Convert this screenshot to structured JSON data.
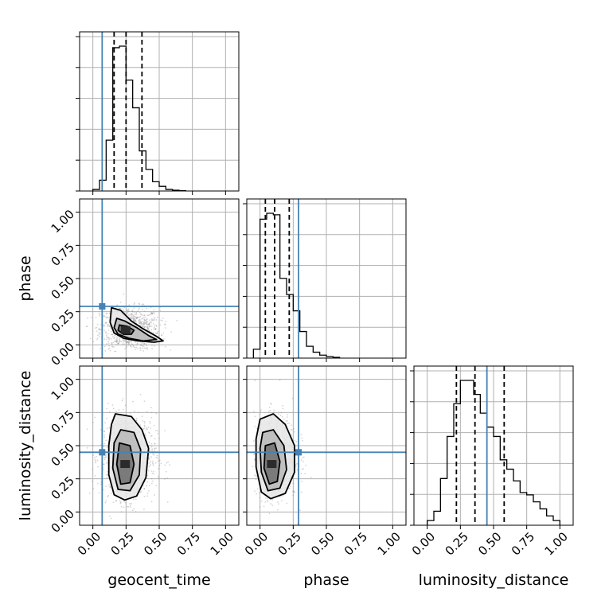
{
  "chart_data": {
    "type": "corner",
    "parameters": [
      "geocent_time",
      "phase",
      "luminosity_distance"
    ],
    "axis_range": [
      -0.1,
      1.1
    ],
    "ticks": [
      0.0,
      0.25,
      0.5,
      0.75,
      1.0
    ],
    "tick_labels": [
      "0.00",
      "0.25",
      "0.50",
      "0.75",
      "1.00"
    ],
    "grid": true,
    "colors": {
      "truth": "#4682b4",
      "histogram": "#000000",
      "grid": "#b0b0b0",
      "samples": "#888888"
    },
    "truths": {
      "geocent_time": 0.07,
      "phase": 0.29,
      "luminosity_distance": 0.45
    },
    "quantile_lines": {
      "geocent_time": [
        0.16,
        0.25,
        0.37
      ],
      "phase": [
        0.04,
        0.11,
        0.22
      ],
      "luminosity_distance": [
        0.22,
        0.36,
        0.58
      ]
    },
    "histograms": [
      {
        "parameter": "geocent_time",
        "bin_edges": [
          0.0,
          0.05,
          0.1,
          0.15,
          0.2,
          0.25,
          0.3,
          0.35,
          0.4,
          0.45,
          0.5,
          0.55,
          0.6,
          0.65,
          0.7
        ],
        "counts": [
          0.01,
          0.07,
          0.33,
          0.93,
          0.94,
          0.72,
          0.54,
          0.26,
          0.14,
          0.06,
          0.03,
          0.01,
          0.005,
          0.002
        ]
      },
      {
        "parameter": "phase",
        "bin_edges": [
          -0.05,
          0.0,
          0.05,
          0.1,
          0.15,
          0.2,
          0.25,
          0.3,
          0.35,
          0.4,
          0.45,
          0.5,
          0.55,
          0.6
        ],
        "counts": [
          0.06,
          0.94,
          0.98,
          0.97,
          0.54,
          0.43,
          0.32,
          0.18,
          0.08,
          0.04,
          0.02,
          0.01,
          0.005
        ]
      },
      {
        "parameter": "luminosity_distance",
        "bin_edges": [
          0.0,
          0.05,
          0.1,
          0.15,
          0.2,
          0.25,
          0.3,
          0.35,
          0.4,
          0.45,
          0.5,
          0.55,
          0.6,
          0.65,
          0.7,
          0.75,
          0.8,
          0.85,
          0.9,
          0.95,
          1.0
        ],
        "counts": [
          0.02,
          0.06,
          0.2,
          0.38,
          0.52,
          0.62,
          0.62,
          0.56,
          0.48,
          0.42,
          0.38,
          0.28,
          0.24,
          0.19,
          0.14,
          0.13,
          0.1,
          0.07,
          0.04,
          0.02
        ]
      }
    ],
    "pair_panels": [
      {
        "x": "geocent_time",
        "y": "phase",
        "scatter_center": [
          0.28,
          0.12
        ],
        "scatter_spread": [
          0.14,
          0.1
        ],
        "contours": [
          [
            [
              0.14,
              0.28
            ],
            [
              0.21,
              0.26
            ],
            [
              0.29,
              0.18
            ],
            [
              0.38,
              0.12
            ],
            [
              0.47,
              0.07
            ],
            [
              0.53,
              0.03
            ],
            [
              0.46,
              0.02
            ],
            [
              0.34,
              0.03
            ],
            [
              0.23,
              0.05
            ],
            [
              0.16,
              0.09
            ],
            [
              0.13,
              0.17
            ]
          ],
          [
            [
              0.18,
              0.2
            ],
            [
              0.24,
              0.18
            ],
            [
              0.33,
              0.13
            ],
            [
              0.42,
              0.07
            ],
            [
              0.48,
              0.04
            ],
            [
              0.38,
              0.03
            ],
            [
              0.27,
              0.05
            ],
            [
              0.19,
              0.08
            ],
            [
              0.16,
              0.13
            ]
          ],
          [
            [
              0.2,
              0.15
            ],
            [
              0.26,
              0.14
            ],
            [
              0.31,
              0.11
            ],
            [
              0.29,
              0.08
            ],
            [
              0.23,
              0.08
            ],
            [
              0.19,
              0.11
            ]
          ]
        ]
      },
      {
        "x": "geocent_time",
        "y": "luminosity_distance",
        "scatter_center": [
          0.27,
          0.42
        ],
        "scatter_spread": [
          0.13,
          0.2
        ],
        "contours": [
          [
            [
              0.17,
              0.74
            ],
            [
              0.29,
              0.72
            ],
            [
              0.37,
              0.62
            ],
            [
              0.42,
              0.48
            ],
            [
              0.4,
              0.26
            ],
            [
              0.33,
              0.12
            ],
            [
              0.24,
              0.09
            ],
            [
              0.16,
              0.13
            ],
            [
              0.12,
              0.28
            ],
            [
              0.12,
              0.5
            ],
            [
              0.14,
              0.66
            ]
          ],
          [
            [
              0.21,
              0.62
            ],
            [
              0.31,
              0.6
            ],
            [
              0.36,
              0.47
            ],
            [
              0.35,
              0.28
            ],
            [
              0.28,
              0.16
            ],
            [
              0.19,
              0.17
            ],
            [
              0.15,
              0.33
            ],
            [
              0.16,
              0.52
            ]
          ],
          [
            [
              0.2,
              0.52
            ],
            [
              0.28,
              0.5
            ],
            [
              0.31,
              0.36
            ],
            [
              0.28,
              0.22
            ],
            [
              0.21,
              0.21
            ],
            [
              0.18,
              0.36
            ]
          ]
        ]
      },
      {
        "x": "phase",
        "y": "luminosity_distance",
        "scatter_center": [
          0.12,
          0.42
        ],
        "scatter_spread": [
          0.1,
          0.2
        ],
        "contours": [
          [
            [
              0.0,
              0.7
            ],
            [
              0.1,
              0.74
            ],
            [
              0.19,
              0.66
            ],
            [
              0.26,
              0.5
            ],
            [
              0.26,
              0.3
            ],
            [
              0.19,
              0.14
            ],
            [
              0.08,
              0.1
            ],
            [
              0.01,
              0.15
            ],
            [
              -0.03,
              0.34
            ],
            [
              -0.03,
              0.55
            ]
          ],
          [
            [
              0.02,
              0.6
            ],
            [
              0.1,
              0.62
            ],
            [
              0.18,
              0.5
            ],
            [
              0.2,
              0.32
            ],
            [
              0.15,
              0.18
            ],
            [
              0.06,
              0.16
            ],
            [
              0.01,
              0.3
            ],
            [
              0.0,
              0.48
            ]
          ],
          [
            [
              0.04,
              0.5
            ],
            [
              0.11,
              0.52
            ],
            [
              0.15,
              0.38
            ],
            [
              0.13,
              0.23
            ],
            [
              0.07,
              0.21
            ],
            [
              0.03,
              0.33
            ]
          ]
        ]
      }
    ]
  }
}
